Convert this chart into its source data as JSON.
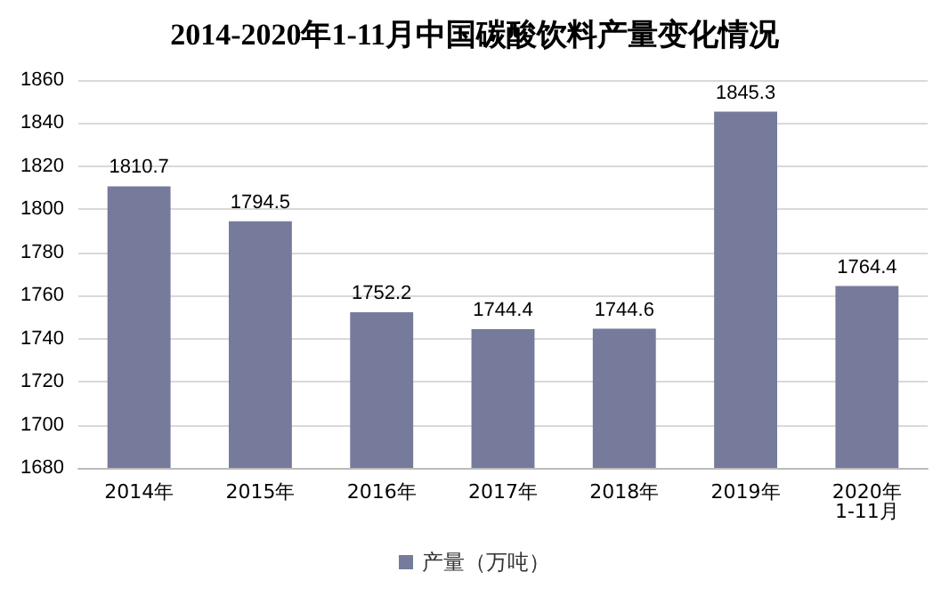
{
  "chart_data": {
    "type": "bar",
    "title": "2014-2020年1-11月中国碳酸饮料产量变化情况",
    "categories": [
      "2014年",
      "2015年",
      "2016年",
      "2017年",
      "2018年",
      "2019年",
      "2020年1-11月"
    ],
    "series": [
      {
        "name": "产量（万吨）",
        "color": "#767b9b",
        "values": [
          1810.7,
          1794.5,
          1752.2,
          1744.4,
          1744.6,
          1845.3,
          1764.4
        ]
      }
    ],
    "ylim": [
      1680,
      1860
    ],
    "yticks": [
      1680,
      1700,
      1720,
      1740,
      1760,
      1780,
      1800,
      1820,
      1840,
      1860
    ],
    "grid": "y",
    "legend": "bottom",
    "data_labels": true
  }
}
